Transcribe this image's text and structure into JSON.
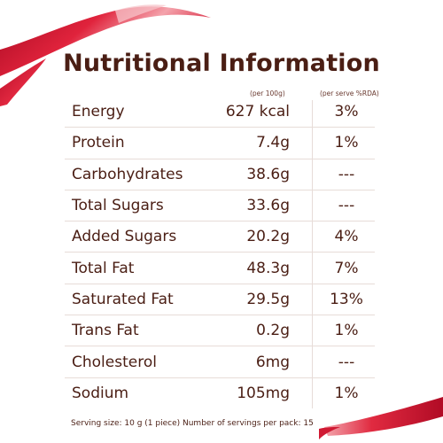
{
  "title": "Nutritional Information",
  "column_headers": {
    "per_100g": "(per 100g)",
    "per_serve_rda": "(per serve %RDA)"
  },
  "rows": [
    {
      "nutrient": "Energy",
      "per_100g": "627 kcal",
      "per_serve_rda": "3%"
    },
    {
      "nutrient": "Protein",
      "per_100g": "7.4g",
      "per_serve_rda": "1%"
    },
    {
      "nutrient": "Carbohydrates",
      "per_100g": "38.6g",
      "per_serve_rda": "---"
    },
    {
      "nutrient": "Total Sugars",
      "per_100g": "33.6g",
      "per_serve_rda": "---"
    },
    {
      "nutrient": "Added Sugars",
      "per_100g": "20.2g",
      "per_serve_rda": "4%"
    },
    {
      "nutrient": "Total Fat",
      "per_100g": "48.3g",
      "per_serve_rda": "7%"
    },
    {
      "nutrient": "Saturated Fat",
      "per_100g": "29.5g",
      "per_serve_rda": "13%"
    },
    {
      "nutrient": "Trans Fat",
      "per_100g": "0.2g",
      "per_serve_rda": "1%"
    },
    {
      "nutrient": "Cholesterol",
      "per_100g": "6mg",
      "per_serve_rda": "---"
    },
    {
      "nutrient": "Sodium",
      "per_100g": "105mg",
      "per_serve_rda": "1%"
    }
  ],
  "footnote": "Serving size: 10 g (1 piece) Number of servings per pack: 15",
  "colors": {
    "text": "#4a1e14",
    "ribbon": "#c8102e",
    "ribbon_highlight": "#f2a0a8",
    "divider": "#e7dcd8"
  }
}
